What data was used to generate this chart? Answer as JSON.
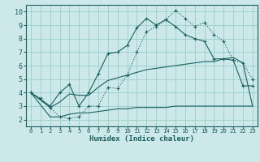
{
  "xlabel": "Humidex (Indice chaleur)",
  "bg_color": "#cce8e8",
  "grid_color": "#99cccc",
  "line_color": "#1a6060",
  "xlim": [
    -0.5,
    23.5
  ],
  "ylim": [
    1.5,
    10.5
  ],
  "yticks": [
    2,
    3,
    4,
    5,
    6,
    7,
    8,
    9,
    10
  ],
  "xticks": [
    0,
    1,
    2,
    3,
    4,
    5,
    6,
    7,
    8,
    9,
    10,
    11,
    12,
    13,
    14,
    15,
    16,
    17,
    18,
    19,
    20,
    21,
    22,
    23
  ],
  "series": [
    {
      "x": [
        0,
        1,
        2,
        3,
        4,
        5,
        6,
        7,
        8,
        9,
        10,
        11,
        12,
        13,
        14,
        15,
        16,
        17,
        18,
        19,
        20,
        21,
        22,
        23
      ],
      "y": [
        4.0,
        3.6,
        2.9,
        2.2,
        2.1,
        2.2,
        3.0,
        3.0,
        4.4,
        4.3,
        5.3,
        7.0,
        8.5,
        8.9,
        9.4,
        10.1,
        9.5,
        8.9,
        9.2,
        8.3,
        7.8,
        6.4,
        6.2,
        5.0
      ],
      "style": "dotted",
      "marker": "+"
    },
    {
      "x": [
        0,
        2,
        3,
        4,
        5,
        6,
        7,
        8,
        9,
        10,
        11,
        12,
        13,
        14,
        15,
        16,
        17,
        18,
        19,
        20,
        21,
        22,
        23
      ],
      "y": [
        4.0,
        3.0,
        4.0,
        4.6,
        3.0,
        4.0,
        5.4,
        6.9,
        7.0,
        7.5,
        8.8,
        9.5,
        9.0,
        9.4,
        8.9,
        8.3,
        8.0,
        7.8,
        6.5,
        6.5,
        6.4,
        4.5,
        4.5
      ],
      "style": "solid",
      "marker": "+"
    },
    {
      "x": [
        0,
        2,
        3,
        4,
        5,
        6,
        7,
        8,
        9,
        10,
        11,
        12,
        13,
        14,
        15,
        16,
        17,
        18,
        19,
        20,
        21,
        22,
        23
      ],
      "y": [
        4.0,
        2.9,
        3.3,
        3.9,
        3.8,
        3.8,
        4.4,
        4.9,
        5.1,
        5.3,
        5.5,
        5.7,
        5.8,
        5.9,
        6.0,
        6.1,
        6.2,
        6.3,
        6.3,
        6.5,
        6.6,
        6.2,
        3.0
      ],
      "style": "solid",
      "marker": null
    },
    {
      "x": [
        0,
        2,
        3,
        4,
        5,
        6,
        7,
        8,
        9,
        10,
        11,
        12,
        13,
        14,
        15,
        16,
        17,
        18,
        19,
        20,
        21,
        22,
        23
      ],
      "y": [
        4.0,
        2.2,
        2.2,
        2.4,
        2.5,
        2.5,
        2.6,
        2.7,
        2.8,
        2.8,
        2.9,
        2.9,
        2.9,
        2.9,
        3.0,
        3.0,
        3.0,
        3.0,
        3.0,
        3.0,
        3.0,
        3.0,
        3.0
      ],
      "style": "solid",
      "marker": null
    }
  ]
}
